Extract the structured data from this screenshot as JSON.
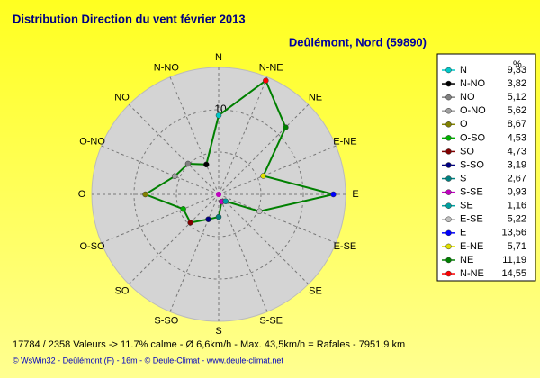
{
  "chart_data": {
    "type": "radar",
    "title": "Distribution Direction du vent   février 2013",
    "subtitle": "Deûlémont, Nord (59890)",
    "legend_title": "%",
    "categories": [
      "N",
      "N-NO",
      "NO",
      "O-NO",
      "O",
      "O-SO",
      "SO",
      "S-SO",
      "S",
      "S-SE",
      "SE",
      "E-SE",
      "E",
      "E-NE",
      "NE",
      "N-NE"
    ],
    "values": [
      9.33,
      3.82,
      5.12,
      5.62,
      8.67,
      4.53,
      4.73,
      3.19,
      2.67,
      0.93,
      1.16,
      5.22,
      13.56,
      5.71,
      11.19,
      14.55
    ],
    "value_labels": [
      "9,33",
      "3,82",
      "5,12",
      "5,62",
      "8,67",
      "4,53",
      "4,73",
      "3,19",
      "2,67",
      "0,93",
      "1,16",
      "5,22",
      "13,56",
      "5,71",
      "11,19",
      "14,55"
    ],
    "color": "#008000",
    "marker_colors": [
      "#00c8c8",
      "#000000",
      "#808080",
      "#a0a0a0",
      "#808000",
      "#00b000",
      "#800000",
      "#000080",
      "#008080",
      "#c000c0",
      "#00a0a0",
      "#c0c0c0",
      "#0000ff",
      "#e0e000",
      "#008000",
      "#ff0000"
    ],
    "rlim": [
      0,
      15
    ],
    "rticks": [
      10
    ],
    "stats": "17784 / 2358 Valeurs  -> 11.7% calme   -   Ø 6,6km/h  -  Max. 43,5km/h = Rafales   -   7951.9 km",
    "footer": "© WsWin32  -  Deûlémont (F) - 16m  -  © Deule-Climat  -  www.deule-climat.net"
  }
}
